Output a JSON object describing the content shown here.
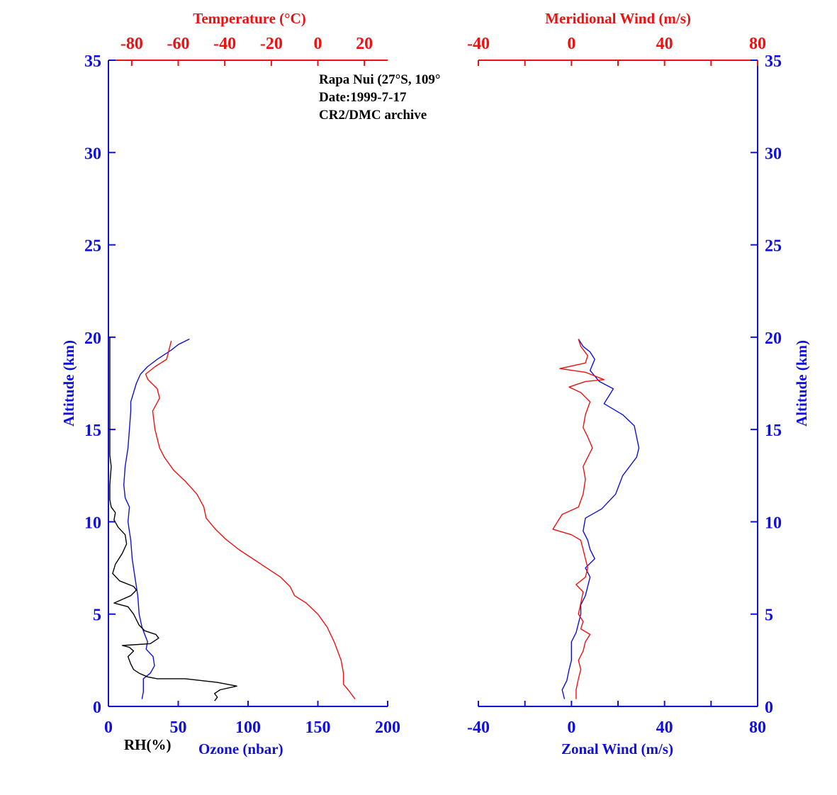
{
  "annotation": {
    "line1": "Rapa Nui (27°S, 109°",
    "line2": "Date:1999-7-17",
    "line3": "CR2/DMC archive"
  },
  "colors": {
    "axis_blue": "#1010dd",
    "axis_red": "#ee1111",
    "rh": "#000000"
  },
  "chart_data": [
    {
      "type": "line",
      "panel": "left",
      "ylabel": "Altitude (km)",
      "ylim": [
        0,
        35
      ],
      "yticks": [
        "0",
        "5",
        "10",
        "15",
        "20",
        "25",
        "30",
        "35"
      ],
      "bottom_axis": {
        "label": "Ozone (nbar)",
        "secondary_label": "RH(%)",
        "xlim": [
          0,
          200
        ],
        "ticks": [
          "0",
          "50",
          "100",
          "150",
          "200"
        ]
      },
      "top_axis": {
        "label": "Temperature (°C)",
        "xlim": [
          -90,
          30
        ],
        "ticks": [
          "-80",
          "-60",
          "-40",
          "-20",
          "0",
          "20"
        ]
      },
      "series": [
        {
          "axis": "bottom",
          "color": "#1010dd",
          "points": [
            [
              24,
              0.4
            ],
            [
              25,
              0.8
            ],
            [
              25,
              1.5
            ],
            [
              30,
              1.8
            ],
            [
              33,
              2.2
            ],
            [
              32,
              2.7
            ],
            [
              27,
              3.1
            ],
            [
              28,
              3.5
            ],
            [
              26,
              3.9
            ],
            [
              24,
              4.3
            ],
            [
              22,
              5
            ],
            [
              21,
              6
            ],
            [
              19,
              7
            ],
            [
              17,
              8
            ],
            [
              16,
              9
            ],
            [
              14,
              10
            ],
            [
              15,
              10.8
            ],
            [
              12,
              11.3
            ],
            [
              11,
              12
            ],
            [
              12,
              13
            ],
            [
              14,
              14
            ],
            [
              15,
              15
            ],
            [
              16,
              16
            ],
            [
              16,
              16.5
            ],
            [
              18,
              17
            ],
            [
              20,
              17.5
            ],
            [
              23,
              18
            ],
            [
              28,
              18.4
            ],
            [
              35,
              18.8
            ],
            [
              45,
              19.3
            ],
            [
              50,
              19.6
            ],
            [
              58,
              19.9
            ]
          ]
        },
        {
          "axis": "bottom",
          "color": "#000000",
          "points": [
            [
              76,
              0.3
            ],
            [
              78,
              0.5
            ],
            [
              76,
              0.7
            ],
            [
              80,
              0.9
            ],
            [
              92,
              1.1
            ],
            [
              78,
              1.3
            ],
            [
              55,
              1.5
            ],
            [
              35,
              1.5
            ],
            [
              28,
              1.6
            ],
            [
              22,
              1.8
            ],
            [
              18,
              2
            ],
            [
              16,
              2.3
            ],
            [
              14,
              2.7
            ],
            [
              18,
              3
            ],
            [
              15,
              3.2
            ],
            [
              10,
              3.3
            ],
            [
              30,
              3.4
            ],
            [
              36,
              3.7
            ],
            [
              34,
              3.9
            ],
            [
              26,
              4.1
            ],
            [
              22,
              4.4
            ],
            [
              18,
              5
            ],
            [
              14,
              5.4
            ],
            [
              4,
              5.6
            ],
            [
              10,
              5.8
            ],
            [
              16,
              6
            ],
            [
              20,
              6.3
            ],
            [
              18,
              6.5
            ],
            [
              8,
              6.8
            ],
            [
              3,
              7.2
            ],
            [
              5,
              7.7
            ],
            [
              10,
              8.3
            ],
            [
              13,
              8.8
            ],
            [
              12,
              9.3
            ],
            [
              7,
              9.7
            ],
            [
              4,
              10.1
            ],
            [
              5,
              10.5
            ],
            [
              2,
              10.8
            ],
            [
              1,
              11.2
            ],
            [
              1,
              12
            ],
            [
              2,
              13
            ],
            [
              1,
              13.6
            ],
            [
              1,
              14
            ],
            [
              1,
              16
            ],
            [
              1,
              18
            ],
            [
              1,
              20
            ]
          ]
        },
        {
          "axis": "top",
          "color": "#ee1111",
          "points": [
            [
              16,
              0.4
            ],
            [
              13,
              0.9
            ],
            [
              11,
              1.2
            ],
            [
              11,
              1.8
            ],
            [
              10,
              2.5
            ],
            [
              7,
              3.5
            ],
            [
              4,
              4.3
            ],
            [
              0,
              5
            ],
            [
              -5,
              5.6
            ],
            [
              -10,
              6
            ],
            [
              -12,
              6.5
            ],
            [
              -16,
              7
            ],
            [
              -22,
              7.5
            ],
            [
              -28,
              8
            ],
            [
              -34,
              8.5
            ],
            [
              -40,
              9.1
            ],
            [
              -44,
              9.6
            ],
            [
              -48,
              10.2
            ],
            [
              -49,
              10.8
            ],
            [
              -52,
              11.5
            ],
            [
              -57,
              12.2
            ],
            [
              -62,
              12.8
            ],
            [
              -66,
              13.5
            ],
            [
              -68,
              14
            ],
            [
              -70,
              15
            ],
            [
              -71,
              16
            ],
            [
              -68,
              16.7
            ],
            [
              -69,
              17.2
            ],
            [
              -73,
              17.7
            ],
            [
              -74,
              18
            ],
            [
              -70,
              18.4
            ],
            [
              -65,
              18.8
            ],
            [
              -64,
              19.3
            ],
            [
              -63,
              19.8
            ]
          ]
        }
      ]
    },
    {
      "type": "line",
      "panel": "right",
      "ylabel": "Altitude (km)",
      "ylim": [
        0,
        35
      ],
      "yticks": [
        "0",
        "5",
        "10",
        "15",
        "20",
        "25",
        "30",
        "35"
      ],
      "bottom_axis": {
        "label": "Zonal Wind (m/s)",
        "xlim": [
          -40,
          80
        ],
        "ticks": [
          "-40",
          "0",
          "40",
          "80"
        ]
      },
      "top_axis": {
        "label": "Meridional Wind (m/s)",
        "xlim": [
          -40,
          80
        ],
        "ticks": [
          "-40",
          "0",
          "40",
          "80"
        ]
      },
      "series": [
        {
          "axis": "bottom",
          "color": "#1010dd",
          "points": [
            [
              -3,
              0.4
            ],
            [
              -4,
              0.9
            ],
            [
              -2,
              1.4
            ],
            [
              -1,
              2
            ],
            [
              0,
              2.5
            ],
            [
              0,
              3
            ],
            [
              0,
              3.5
            ],
            [
              2,
              4
            ],
            [
              3,
              4.5
            ],
            [
              4,
              5
            ],
            [
              4,
              5.5
            ],
            [
              6,
              6
            ],
            [
              7,
              6.5
            ],
            [
              8,
              7
            ],
            [
              6,
              7.5
            ],
            [
              10,
              8
            ],
            [
              8,
              8.5
            ],
            [
              7,
              9
            ],
            [
              5,
              9.5
            ],
            [
              6,
              10.2
            ],
            [
              13,
              10.7
            ],
            [
              19,
              11.5
            ],
            [
              22,
              12.5
            ],
            [
              28,
              13.5
            ],
            [
              29,
              14
            ],
            [
              27,
              15.2
            ],
            [
              22,
              15.8
            ],
            [
              14,
              16.4
            ],
            [
              18,
              17.2
            ],
            [
              12,
              17.6
            ],
            [
              8,
              18.2
            ],
            [
              10,
              18.8
            ],
            [
              8,
              19.2
            ],
            [
              5,
              19.5
            ],
            [
              3,
              19.9
            ]
          ]
        },
        {
          "axis": "top",
          "color": "#ee1111",
          "points": [
            [
              2,
              0.4
            ],
            [
              2,
              0.9
            ],
            [
              3,
              1.5
            ],
            [
              4,
              2
            ],
            [
              3,
              2.5
            ],
            [
              5,
              3
            ],
            [
              6,
              3.5
            ],
            [
              8,
              3.9
            ],
            [
              4,
              4.2
            ],
            [
              5,
              4.6
            ],
            [
              3,
              5
            ],
            [
              4,
              5.6
            ],
            [
              5,
              6.2
            ],
            [
              2,
              6.6
            ],
            [
              6,
              7
            ],
            [
              7,
              7.5
            ],
            [
              6,
              8
            ],
            [
              5,
              8.5
            ],
            [
              4,
              9
            ],
            [
              0,
              9.3
            ],
            [
              -8,
              9.6
            ],
            [
              -6,
              10
            ],
            [
              -4,
              10.4
            ],
            [
              3,
              10.8
            ],
            [
              5,
              11.5
            ],
            [
              6,
              12.3
            ],
            [
              5,
              13
            ],
            [
              7,
              13.5
            ],
            [
              9,
              14
            ],
            [
              7,
              14.6
            ],
            [
              5,
              15.1
            ],
            [
              6,
              15.8
            ],
            [
              8,
              16.5
            ],
            [
              4,
              17
            ],
            [
              -1,
              17.3
            ],
            [
              6,
              17.6
            ],
            [
              14,
              17.7
            ],
            [
              6,
              18.1
            ],
            [
              -5,
              18.3
            ],
            [
              6,
              18.6
            ],
            [
              7,
              19
            ],
            [
              4,
              19.5
            ],
            [
              3,
              19.9
            ]
          ]
        }
      ]
    }
  ]
}
